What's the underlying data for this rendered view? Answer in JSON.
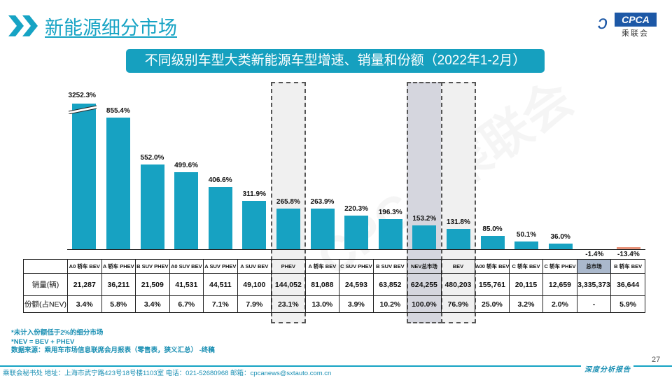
{
  "header": {
    "title": "新能源细分市场",
    "logo_text": "CPCA",
    "logo_cn": "乘联会"
  },
  "chart_data": {
    "type": "bar",
    "title": "不同级别车型大类新能源车型增速、销量和份额（2022年1-2月）",
    "categories": [
      "A0 轿车 BEV",
      "A 轿车 PHEV",
      "B SUV PHEV",
      "A0 SUV BEV",
      "A SUV PHEV",
      "A SUV BEV",
      "PHEV",
      "A 轿车 BEV",
      "C SUV PHEV",
      "B SUV BEV",
      "NEV总市场",
      "BEV",
      "A00 轿车 BEV",
      "C 轿车 BEV",
      "C 轿车 PHEV",
      "总市场",
      "B 轿车 BEV"
    ],
    "values": [
      3252.3,
      855.4,
      552.0,
      499.6,
      406.6,
      311.9,
      265.8,
      263.9,
      220.3,
      196.3,
      153.2,
      131.8,
      85.0,
      50.1,
      36.0,
      -1.4,
      -13.4
    ],
    "value_labels": [
      "3252.3%",
      "855.4%",
      "552.0%",
      "499.6%",
      "406.6%",
      "311.9%",
      "265.8%",
      "263.9%",
      "220.3%",
      "196.3%",
      "153.2%",
      "131.8%",
      "85.0%",
      "50.1%",
      "36.0%",
      "-1.4%",
      "-13.4%"
    ],
    "unit": "%",
    "axis_break_on_first_bar": true,
    "highlighted": [
      "PHEV",
      "NEV总市场",
      "BEV"
    ],
    "colors": {
      "bar": "#17a2c2",
      "negative": "#e8937a",
      "highlight_nev": "#d5d6de",
      "highlight": "#f0f0f0",
      "total_market_cell": "#aab8cc"
    },
    "table": {
      "row_labels": [
        "销量(辆)",
        "份额(占NEV)"
      ],
      "sales": [
        "21,287",
        "36,211",
        "21,509",
        "41,531",
        "44,511",
        "49,100",
        "144,052",
        "81,088",
        "24,593",
        "63,852",
        "624,255",
        "480,203",
        "155,761",
        "20,115",
        "12,659",
        "3,335,373",
        "36,644"
      ],
      "share": [
        "3.4%",
        "5.8%",
        "3.4%",
        "6.7%",
        "7.1%",
        "7.9%",
        "23.1%",
        "13.0%",
        "3.9%",
        "10.2%",
        "100.0%",
        "76.9%",
        "25.0%",
        "3.2%",
        "2.0%",
        "-",
        "5.9%"
      ]
    }
  },
  "notes": [
    "*未计入份额低于2%的细分市场",
    "*NEV = BEV + PHEV",
    "数据来源：乘用车市场信息联席会月报表（零售表，狭义汇总） -终稿"
  ],
  "page_number": "27",
  "footer": {
    "text": "乘联会秘书处   地址：上海市武宁路423号18号楼1103室  电话：021-52680968   邮箱：cpcanews@sxtauto.com.cn",
    "tag": "深度分析报告"
  }
}
